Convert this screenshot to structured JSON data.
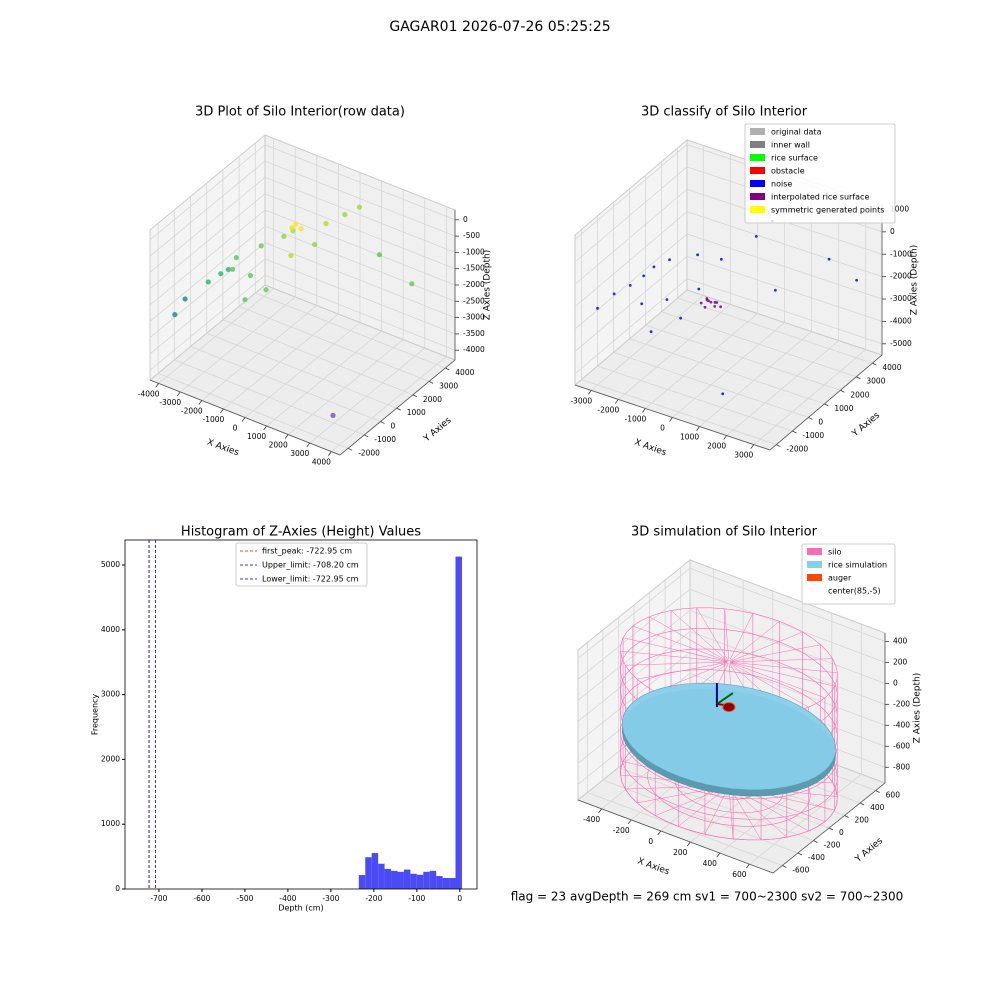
{
  "title": "GAGAR01 2026-07-26 05:25:25",
  "footer": "flag = 23  avgDepth = 269 cm  sv1 = 700~2300  sv2 = 700~2300",
  "chart_data": [
    {
      "type": "scatter3d",
      "title": "3D Plot of Silo Interior(row data)",
      "xlabel": "X Axies",
      "ylabel": "Y Axies",
      "zlabel": "Z Axies (Depth)",
      "xlim": [
        -4400,
        4400
      ],
      "ylim": [
        -2500,
        4600
      ],
      "zlim": [
        -4300,
        300
      ],
      "xticks": [
        -4000,
        -3000,
        -2000,
        -1000,
        0,
        1000,
        2000,
        3000,
        4000
      ],
      "yticks": [
        -2000,
        -1000,
        0,
        1000,
        2000,
        3000,
        4000
      ],
      "zticks": [
        0,
        -500,
        -1000,
        -1500,
        -2000,
        -2500,
        -3000,
        -3500,
        -4000
      ],
      "series": [
        {
          "x": [
            -4000,
            -3900,
            -3200,
            -3000,
            -2800,
            -2500,
            -2300,
            -2000,
            -1800,
            -1500,
            -1200,
            -1000,
            -900,
            -800,
            -700,
            -500,
            -300,
            0,
            500,
            800,
            1500,
            3000,
            2800,
            -600
          ],
          "y": [
            -1500,
            -1000,
            -500,
            0,
            200,
            300,
            -200,
            500,
            900,
            -500,
            1500,
            1800,
            1600,
            1700,
            1900,
            1000,
            2200,
            2500,
            3000,
            3500,
            3800,
            3800,
            -800,
            -400
          ],
          "z": [
            -2600,
            -2300,
            -1800,
            -1700,
            -1600,
            -1200,
            -1300,
            -1700,
            -900,
            -1900,
            -700,
            -600,
            -400,
            -300,
            -500,
            -900,
            -1000,
            -400,
            -200,
            -100,
            -1500,
            -2000,
            -4200,
            -1400
          ],
          "colors": [
            "#21918c",
            "#21918c",
            "#35b779",
            "#35b779",
            "#35b779",
            "#5ec962",
            "#5ec962",
            "#5ec962",
            "#6ece58",
            "#5ec962",
            "#90d743",
            "#b5de2b",
            "#e8e419",
            "#fde725",
            "#fde725",
            "#b5de2b",
            "#90d743",
            "#b5de2b",
            "#a0da39",
            "#a0da39",
            "#5ec962",
            "#6ece58",
            "#7e57c2",
            "#6ece58"
          ]
        }
      ]
    },
    {
      "type": "scatter3d",
      "title": "3D classify of Silo Interior",
      "xlabel": "X Axies",
      "ylabel": "Y Axies",
      "zlabel": "Z Axies (Depth)",
      "xlim": [
        -3600,
        3600
      ],
      "ylim": [
        -2400,
        4600
      ],
      "zlim": [
        -5500,
        1200
      ],
      "xticks": [
        -3000,
        -2000,
        -1000,
        0,
        1000,
        2000,
        3000
      ],
      "yticks": [
        -2000,
        -1000,
        0,
        1000,
        2000,
        3000,
        4000
      ],
      "zticks": [
        1000,
        0,
        -1000,
        -2000,
        -3000,
        -4000,
        -5000
      ],
      "series": [
        {
          "name": "original data",
          "color": "#b0b0b0",
          "x": [],
          "y": [],
          "z": []
        },
        {
          "name": "inner wall",
          "color": "#808080",
          "x": [],
          "y": [],
          "z": []
        },
        {
          "name": "rice surface",
          "color": "#00ff00",
          "x": [],
          "y": [],
          "z": []
        },
        {
          "name": "obstacle",
          "color": "#ff0000",
          "x": [],
          "y": [],
          "z": []
        },
        {
          "name": "noise",
          "color": "#0000ff",
          "x": [
            -3300,
            -3100,
            -2800,
            -2600,
            -2400,
            -2200,
            -2000,
            -1800,
            -1500,
            -1200,
            -1000,
            -800,
            -500,
            200,
            500,
            900,
            1200,
            2000,
            2900,
            1500
          ],
          "y": [
            -1500,
            -800,
            -300,
            200,
            500,
            -600,
            800,
            300,
            -1200,
            1200,
            -200,
            600,
            1500,
            2500,
            3000,
            3500,
            2000,
            4000,
            4200,
            -1800
          ],
          "z": [
            -2500,
            -2200,
            -2000,
            -1800,
            -1500,
            -2400,
            -1200,
            -2600,
            -3000,
            -900,
            -2800,
            -1900,
            -1000,
            -300,
            200,
            500,
            -2000,
            -1500,
            -2200,
            -4200
          ]
        },
        {
          "name": "interpolated rice surface",
          "color": "#800080",
          "x": [
            -300,
            -200,
            -100,
            0,
            100,
            200,
            300,
            -150,
            150,
            0
          ],
          "y": [
            -100,
            100,
            -200,
            0,
            200,
            -100,
            100,
            0,
            0,
            -150
          ],
          "z": [
            -1900,
            -1850,
            -1950,
            -1800,
            -1900,
            -1850,
            -1950,
            -1700,
            -1750,
            -1650
          ]
        },
        {
          "name": "symmetric generated points",
          "color": "#ffff00",
          "x": [],
          "y": [],
          "z": []
        }
      ]
    },
    {
      "type": "histogram",
      "title": "Histogram of Z-Axies (Height) Values",
      "xlabel": "Depth (cm)",
      "ylabel": "Frequency",
      "color": "#4b4bf5",
      "xlim": [
        -779,
        40
      ],
      "ylim": [
        0,
        5386
      ],
      "xticks": [
        -700,
        -600,
        -500,
        -400,
        -300,
        -200,
        -100,
        0
      ],
      "yticks": [
        0,
        1000,
        2000,
        3000,
        4000,
        5000
      ],
      "bins": [
        -235,
        -220,
        -205,
        -190,
        -175,
        -160,
        -145,
        -130,
        -115,
        -100,
        -85,
        -70,
        -55,
        -40,
        -25,
        -10,
        5
      ],
      "values": [
        215,
        490,
        555,
        390,
        310,
        280,
        265,
        300,
        235,
        220,
        265,
        280,
        200,
        170,
        170,
        5130
      ],
      "vlines": [
        {
          "name": "first_peak: -722.95 cm",
          "value": -722.95,
          "color": "#ff0000"
        },
        {
          "name": "Upper_limit: -708.20 cm",
          "value": -708.2,
          "color": "#0000cc"
        },
        {
          "name": "Lower_limit: -722.95 cm",
          "value": -722.95,
          "color": "#0000cc"
        }
      ]
    },
    {
      "type": "silo3d",
      "title": "3D simulation of Silo Interior",
      "xlabel": "X Axies",
      "ylabel": "Y Axies",
      "zlabel": "Z Axies (Depth)",
      "xlim": [
        -560,
        760
      ],
      "ylim": [
        -720,
        720
      ],
      "zlim": [
        -950,
        480
      ],
      "xticks": [
        -400,
        -200,
        0,
        200,
        400,
        600
      ],
      "yticks": [
        -600,
        -400,
        -200,
        0,
        200,
        400,
        600
      ],
      "zticks": [
        400,
        200,
        0,
        -200,
        -400,
        -600,
        -800
      ],
      "series": [
        {
          "name": "silo",
          "color": "#ff69b4",
          "radius": 650,
          "z": [
            -900,
            280
          ]
        },
        {
          "name": "rice simulation",
          "color": "#87ceeb",
          "radius": 640,
          "z": -430
        },
        {
          "name": "auger",
          "color": "#ff4500",
          "x": [
            85
          ],
          "y": [
            -5
          ],
          "z": [
            -150
          ]
        },
        {
          "name": "center(85,-5)",
          "color": "#ffffff",
          "x": 85,
          "y": -5
        }
      ]
    }
  ]
}
